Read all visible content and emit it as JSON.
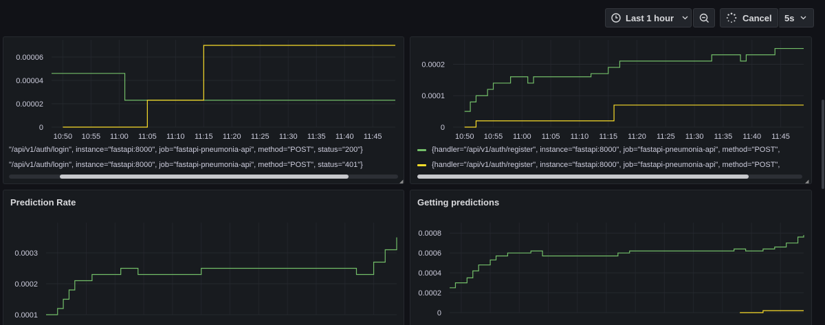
{
  "toolbar": {
    "time_range_label": "Last 1 hour",
    "cancel_label": "Cancel",
    "refresh_interval": "5s",
    "clock_icon": "clock-icon",
    "zoom_out_icon": "zoom-out-icon",
    "spinner_icon": "spinner-icon"
  },
  "panels": [
    {
      "id": "login",
      "title": "",
      "legend": [
        {
          "text": "\"/api/v1/auth/login\", instance=\"fastapi:8000\", job=\"fastapi-pneumonia-api\", method=\"POST\", status=\"200\"}",
          "color": "#73bf69"
        },
        {
          "text": "\"/api/v1/auth/login\", instance=\"fastapi:8000\", job=\"fastapi-pneumonia-api\", method=\"POST\", status=\"401\"}",
          "color": "#fade2a"
        }
      ]
    },
    {
      "id": "register",
      "title": "",
      "legend": [
        {
          "text": "{handler=\"/api/v1/auth/register\", instance=\"fastapi:8000\", job=\"fastapi-pneumonia-api\", method=\"POST\",",
          "color": "#73bf69"
        },
        {
          "text": "{handler=\"/api/v1/auth/register\", instance=\"fastapi:8000\", job=\"fastapi-pneumonia-api\", method=\"POST\",",
          "color": "#fade2a"
        }
      ]
    },
    {
      "id": "prediction-rate",
      "title": "Prediction Rate",
      "legend": []
    },
    {
      "id": "getting-predictions",
      "title": "Getting predictions",
      "legend": []
    }
  ],
  "chart_data": [
    {
      "type": "line",
      "title": "",
      "x_ticks": [
        "10:50",
        "10:55",
        "11:00",
        "11:05",
        "11:10",
        "11:15",
        "11:20",
        "11:25",
        "11:30",
        "11:35",
        "11:40",
        "11:45"
      ],
      "x_range": [
        "10:48",
        "11:49"
      ],
      "y_ticks": [
        "0",
        "0.00002",
        "0.00004",
        "0.00006"
      ],
      "y_range": [
        0,
        7e-05
      ],
      "grid": true,
      "series": [
        {
          "color": "#73bf69",
          "x": [
            "10:48",
            "11:00",
            "11:01",
            "11:49"
          ],
          "y": [
            4.6e-05,
            4.6e-05,
            2.3e-05,
            2.3e-05
          ]
        },
        {
          "color": "#fade2a",
          "x": [
            "10:50",
            "11:04",
            "11:05",
            "11:14",
            "11:15",
            "11:49"
          ],
          "y": [
            0,
            0,
            2.3e-05,
            2.3e-05,
            7e-05,
            7e-05
          ]
        }
      ]
    },
    {
      "type": "line",
      "title": "",
      "x_ticks": [
        "10:50",
        "10:55",
        "11:00",
        "11:05",
        "11:10",
        "11:15",
        "11:20",
        "11:25",
        "11:30",
        "11:35",
        "11:40",
        "11:45"
      ],
      "x_range": [
        "10:48",
        "11:49"
      ],
      "y_ticks": [
        "0",
        "0.0001",
        "0.0002"
      ],
      "y_range": [
        0,
        0.00026
      ],
      "grid": true,
      "series": [
        {
          "color": "#73bf69",
          "x": [
            "10:50",
            "10:51",
            "10:52",
            "10:54",
            "10:55",
            "10:58",
            "11:00",
            "11:01",
            "11:02",
            "11:12",
            "11:15",
            "11:17",
            "11:33",
            "11:37",
            "11:38",
            "11:39",
            "11:41",
            "11:44",
            "11:49"
          ],
          "y": [
            5e-05,
            8e-05,
            0.0001,
            0.00012,
            0.00014,
            0.00016,
            0.00016,
            0.00014,
            0.00016,
            0.00017,
            0.00019,
            0.00021,
            0.00023,
            0.00023,
            0.00021,
            0.00023,
            0.00023,
            0.00025,
            0.00025
          ]
        },
        {
          "color": "#fade2a",
          "x": [
            "10:50",
            "10:52",
            "11:15",
            "11:16",
            "11:49"
          ],
          "y": [
            0,
            2e-05,
            2e-05,
            7e-05,
            7e-05
          ]
        }
      ]
    },
    {
      "type": "line",
      "title": "Prediction Rate",
      "x_ticks": [],
      "x_range": [
        "10:48",
        "11:49"
      ],
      "y_ticks": [
        "0.0001",
        "0.0002",
        "0.0003"
      ],
      "y_range": [
        0.0001,
        0.00038
      ],
      "grid": true,
      "series": [
        {
          "color": "#73bf69",
          "x": [
            "10:48",
            "10:50",
            "10:51",
            "10:52",
            "10:53",
            "10:54",
            "10:56",
            "10:58",
            "11:01",
            "11:04",
            "11:15",
            "11:39",
            "11:42",
            "11:45",
            "11:47",
            "11:49"
          ],
          "y": [
            0.0001,
            0.00012,
            0.00015,
            0.00018,
            0.00021,
            0.00021,
            0.00023,
            0.00023,
            0.00025,
            0.00023,
            0.00025,
            0.00025,
            0.00023,
            0.00027,
            0.00031,
            0.00035
          ]
        }
      ]
    },
    {
      "type": "line",
      "title": "Getting predictions",
      "x_ticks": [],
      "x_range": [
        "10:48",
        "11:49"
      ],
      "y_ticks": [
        "0",
        "0.0002",
        "0.0004",
        "0.0006",
        "0.0008"
      ],
      "y_range": [
        0,
        0.00085
      ],
      "grid": true,
      "series": [
        {
          "color": "#73bf69",
          "x": [
            "10:48",
            "10:49",
            "10:51",
            "10:52",
            "10:53",
            "10:55",
            "10:56",
            "10:58",
            "11:02",
            "11:04",
            "11:06",
            "11:09",
            "11:17",
            "11:19",
            "11:37",
            "11:39",
            "11:42",
            "11:44",
            "11:46",
            "11:48",
            "11:49"
          ],
          "y": [
            0.00025,
            0.0003,
            0.00035,
            0.00042,
            0.00048,
            0.00053,
            0.00057,
            0.0006,
            0.00062,
            0.00057,
            0.00057,
            0.00057,
            0.0006,
            0.00062,
            0.00064,
            0.00062,
            0.00064,
            0.00066,
            0.0007,
            0.00076,
            0.00078
          ]
        },
        {
          "color": "#fade2a",
          "x": [
            "11:38",
            "11:41",
            "11:42",
            "11:49"
          ],
          "y": [
            0,
            0,
            2e-05,
            2e-05
          ]
        }
      ]
    }
  ]
}
